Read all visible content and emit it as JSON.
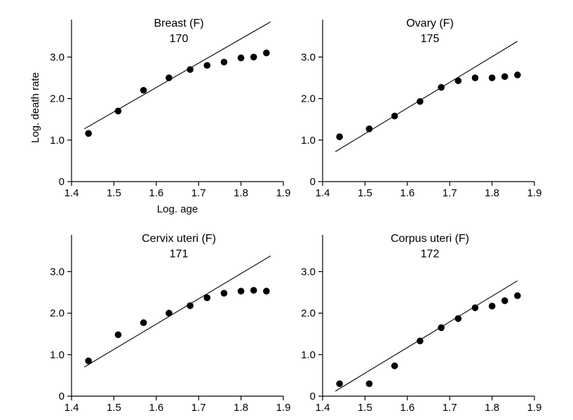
{
  "chart_data": [
    {
      "type": "scatter",
      "title": "Breast (F)",
      "subtitle": "170",
      "xlabel": "Log. age",
      "ylabel": "Log. death rate",
      "xlim": [
        1.4,
        1.9
      ],
      "ylim": [
        0,
        3.8
      ],
      "xticks": [
        "1.4",
        "1.5",
        "1.6",
        "1.7",
        "1.8",
        "1.9"
      ],
      "yticks": [
        "0",
        "1.0",
        "2.0",
        "3.0"
      ],
      "grid": false,
      "x": [
        1.44,
        1.51,
        1.57,
        1.63,
        1.68,
        1.72,
        1.76,
        1.8,
        1.83,
        1.86
      ],
      "y": [
        1.16,
        1.7,
        2.2,
        2.5,
        2.7,
        2.8,
        2.88,
        2.98,
        3.0,
        3.1
      ],
      "fit_line": {
        "x": [
          1.43,
          1.87
        ],
        "y": [
          1.27,
          3.85
        ]
      }
    },
    {
      "type": "scatter",
      "title": "Ovary (F)",
      "subtitle": "175",
      "xlabel": "",
      "ylabel": "",
      "xlim": [
        1.4,
        1.9
      ],
      "ylim": [
        0,
        3.8
      ],
      "xticks": [
        "1.4",
        "1.5",
        "1.6",
        "1.7",
        "1.8",
        "1.9"
      ],
      "yticks": [
        "0",
        "1.0",
        "2.0",
        "3.0"
      ],
      "grid": false,
      "x": [
        1.44,
        1.51,
        1.57,
        1.63,
        1.68,
        1.72,
        1.76,
        1.8,
        1.83,
        1.86
      ],
      "y": [
        1.08,
        1.27,
        1.58,
        1.93,
        2.27,
        2.43,
        2.5,
        2.5,
        2.53,
        2.57
      ],
      "fit_line": {
        "x": [
          1.43,
          1.86
        ],
        "y": [
          0.72,
          3.38
        ]
      }
    },
    {
      "type": "scatter",
      "title": "Cervix uteri (F)",
      "subtitle": "171",
      "xlabel": "",
      "ylabel": "",
      "xlim": [
        1.4,
        1.9
      ],
      "ylim": [
        0,
        3.8
      ],
      "xticks": [
        "1.4",
        "1.5",
        "1.6",
        "1.7",
        "1.8",
        "1.9"
      ],
      "yticks": [
        "0",
        "1.0",
        "2.0",
        "3.0"
      ],
      "grid": false,
      "x": [
        1.44,
        1.51,
        1.57,
        1.63,
        1.68,
        1.72,
        1.76,
        1.8,
        1.83,
        1.86
      ],
      "y": [
        0.85,
        1.48,
        1.77,
        2.0,
        2.18,
        2.37,
        2.48,
        2.53,
        2.55,
        2.53
      ],
      "fit_line": {
        "x": [
          1.43,
          1.87
        ],
        "y": [
          0.7,
          3.38
        ]
      }
    },
    {
      "type": "scatter",
      "title": "Corpus uteri (F)",
      "subtitle": "172",
      "xlabel": "",
      "ylabel": "",
      "xlim": [
        1.4,
        1.9
      ],
      "ylim": [
        0,
        3.8
      ],
      "xticks": [
        "1.4",
        "1.5",
        "1.6",
        "1.7",
        "1.8",
        "1.9"
      ],
      "yticks": [
        "0",
        "1.0",
        "2.0",
        "3.0"
      ],
      "grid": false,
      "x": [
        1.44,
        1.51,
        1.57,
        1.63,
        1.68,
        1.72,
        1.76,
        1.8,
        1.83,
        1.86
      ],
      "y": [
        0.3,
        0.3,
        0.73,
        1.33,
        1.65,
        1.87,
        2.13,
        2.17,
        2.3,
        2.42
      ],
      "fit_line": {
        "x": [
          1.43,
          1.86
        ],
        "y": [
          0.12,
          2.78
        ]
      }
    }
  ]
}
